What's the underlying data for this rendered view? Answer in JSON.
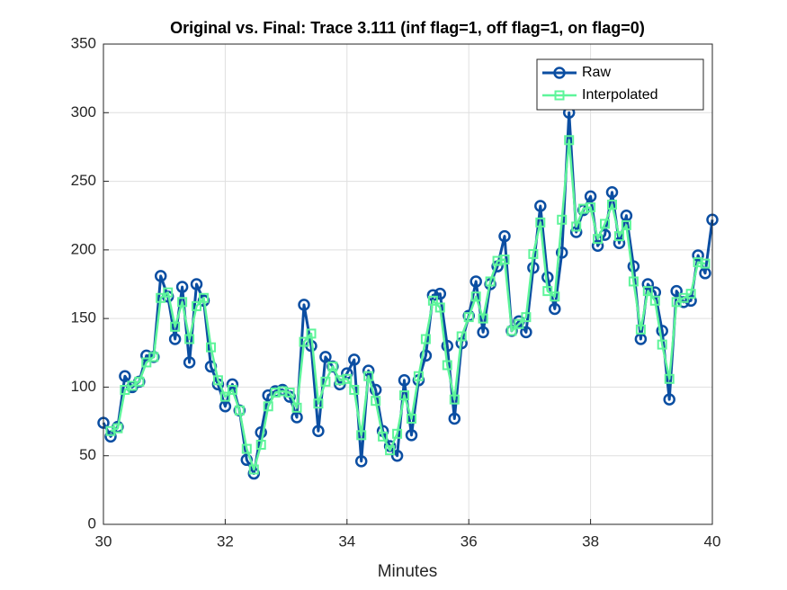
{
  "chart_data": {
    "type": "line",
    "title": "Original vs. Final: Trace 3.111 (inf flag=1, off flag=1, on flag=0)",
    "xlabel": "Minutes",
    "x": [
      30,
      30.118,
      30.235,
      30.353,
      30.471,
      30.588,
      30.706,
      30.824,
      30.941,
      31.059,
      31.176,
      31.294,
      31.412,
      31.529,
      31.647,
      31.765,
      31.882,
      32,
      32.118,
      32.235,
      32.353,
      32.471,
      32.588,
      32.706,
      32.824,
      32.941,
      33.059,
      33.176,
      33.294,
      33.412,
      33.529,
      33.647,
      33.765,
      33.882,
      34,
      34.118,
      34.235,
      34.353,
      34.471,
      34.588,
      34.706,
      34.824,
      34.941,
      35.059,
      35.176,
      35.294,
      35.412,
      35.529,
      35.647,
      35.765,
      35.882,
      36,
      36.118,
      36.235,
      36.353,
      36.471,
      36.588,
      36.706,
      36.824,
      36.941,
      37.059,
      37.176,
      37.294,
      37.412,
      37.529,
      37.647,
      37.765,
      37.882,
      38,
      38.118,
      38.235,
      38.353,
      38.471,
      38.588,
      38.706,
      38.824,
      38.941,
      39.059,
      39.176,
      39.294,
      39.412,
      39.529,
      39.647,
      39.765,
      39.882,
      40
    ],
    "series": [
      {
        "name": "Raw",
        "color": "#0b4ea2",
        "marker": "circle",
        "values": [
          74,
          64,
          71,
          108,
          100,
          104,
          123,
          122,
          181,
          166,
          135,
          173,
          118,
          175,
          163,
          115,
          102,
          86,
          102,
          83,
          47,
          37,
          67,
          94,
          97,
          98,
          93,
          78,
          160,
          130,
          68,
          122,
          115,
          102,
          110,
          120,
          46,
          112,
          98,
          68,
          57,
          50,
          105,
          65,
          105,
          123,
          167,
          168,
          130,
          77,
          132,
          152,
          177,
          140,
          175,
          188,
          210,
          141,
          148,
          140,
          187,
          232,
          180,
          157,
          198,
          300,
          213,
          229,
          239,
          203,
          211,
          242,
          205,
          225,
          188,
          135,
          175,
          169,
          141,
          91,
          170,
          162,
          163,
          196,
          183,
          222
        ]
      },
      {
        "name": "Interpolated",
        "color": "#5ef59a",
        "marker": "square",
        "values": [
          null,
          68,
          70,
          98,
          101,
          104,
          118,
          122,
          165,
          169,
          144,
          162,
          135,
          159,
          165,
          129,
          105,
          93,
          98,
          83,
          55,
          40,
          58,
          86,
          96,
          97,
          96,
          85,
          133,
          139,
          88,
          104,
          115,
          105,
          106,
          98,
          65,
          108,
          90,
          64,
          54,
          66,
          94,
          77,
          108,
          135,
          163,
          158,
          116,
          91,
          137,
          151,
          166,
          150,
          177,
          192,
          193,
          141,
          146,
          151,
          197,
          220,
          170,
          166,
          222,
          280,
          217,
          230,
          231,
          208,
          219,
          233,
          210,
          218,
          177,
          142,
          170,
          163,
          131,
          106,
          162,
          165,
          168,
          191,
          190,
          null
        ]
      }
    ],
    "xlim": [
      30,
      40
    ],
    "xticks": [
      30,
      32,
      34,
      36,
      38,
      40
    ],
    "ylim": [
      0,
      350
    ],
    "yticks": [
      0,
      50,
      100,
      150,
      200,
      250,
      300,
      350
    ],
    "grid": true,
    "legend": "top-right"
  }
}
